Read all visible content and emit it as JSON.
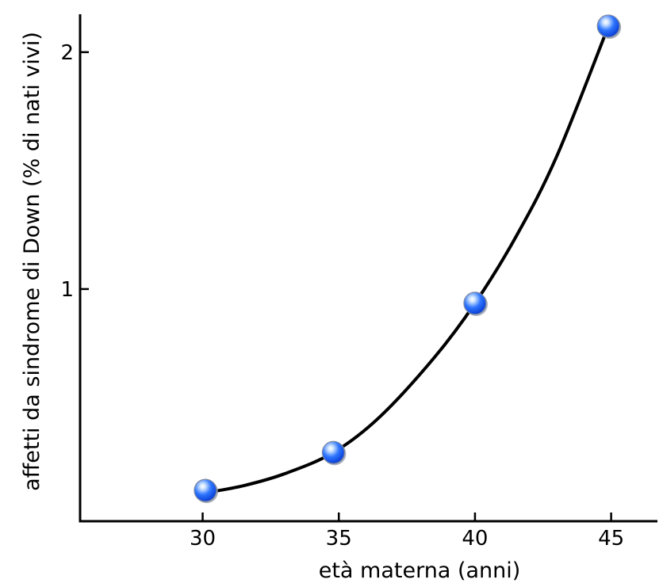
{
  "chart_data": {
    "type": "scatter",
    "title": "",
    "xlabel": "età materna (anni)",
    "ylabel": "affetti da sindrome di Down (% di nati vivi)",
    "xlim": [
      25.5,
      46.7
    ],
    "ylim": [
      0.02,
      2.16
    ],
    "x_ticks": [
      30,
      35,
      40,
      45
    ],
    "x_tick_labels": [
      "30",
      "35",
      "40",
      "45"
    ],
    "y_ticks": [
      1,
      2
    ],
    "y_tick_labels": [
      "1",
      "2"
    ],
    "grid": false,
    "legend": "none",
    "series": [
      {
        "points": [
          {
            "x": 30.1,
            "y": 0.15
          },
          {
            "x": 34.8,
            "y": 0.31
          },
          {
            "x": 40.0,
            "y": 0.94
          },
          {
            "x": 44.9,
            "y": 2.11
          }
        ],
        "fit_curve": [
          {
            "x": 30.1,
            "y": 0.14
          },
          {
            "x": 31.5,
            "y": 0.17
          },
          {
            "x": 33.0,
            "y": 0.22
          },
          {
            "x": 34.8,
            "y": 0.31
          },
          {
            "x": 36.5,
            "y": 0.46
          },
          {
            "x": 38.5,
            "y": 0.71
          },
          {
            "x": 40.0,
            "y": 0.94
          },
          {
            "x": 41.5,
            "y": 1.22
          },
          {
            "x": 43.0,
            "y": 1.56
          },
          {
            "x": 44.9,
            "y": 2.11
          }
        ]
      }
    ],
    "colors": {
      "marker": "#1f5fff",
      "marker_highlight": "#e8f4ff",
      "marker_edge": "#7f8aa0",
      "curve": "#000000",
      "axis": "#000000"
    }
  }
}
